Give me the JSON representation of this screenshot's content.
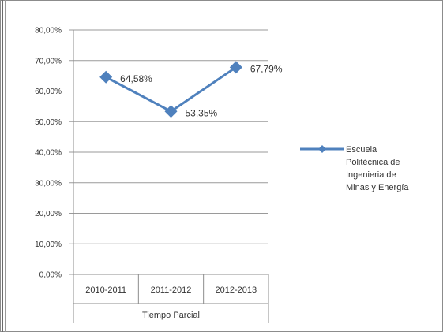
{
  "chart_data": {
    "type": "line",
    "categories": [
      "2010-2011",
      "2011-2012",
      "2012-2013"
    ],
    "category_group_label": "Tiempo Parcial",
    "series": [
      {
        "name": "Escuela Politécnica de Ingeniería de Minas y Energía",
        "legend_lines": [
          "Escuela",
          "Politécnica de",
          "Ingenieria de",
          "Minas y Energía"
        ],
        "values": [
          64.58,
          53.35,
          67.79
        ],
        "data_labels": [
          "64,58%",
          "53,35%",
          "67,79%"
        ],
        "color": "#4f81bd"
      }
    ],
    "y_ticks": [
      "0,00%",
      "10,00%",
      "20,00%",
      "30,00%",
      "40,00%",
      "50,00%",
      "60,00%",
      "70,00%",
      "80,00%"
    ],
    "ylim": [
      0,
      80
    ],
    "y_step": 10,
    "grid": true,
    "legend_position": "right",
    "title": "",
    "xlabel": "Tiempo Parcial",
    "ylabel": ""
  }
}
